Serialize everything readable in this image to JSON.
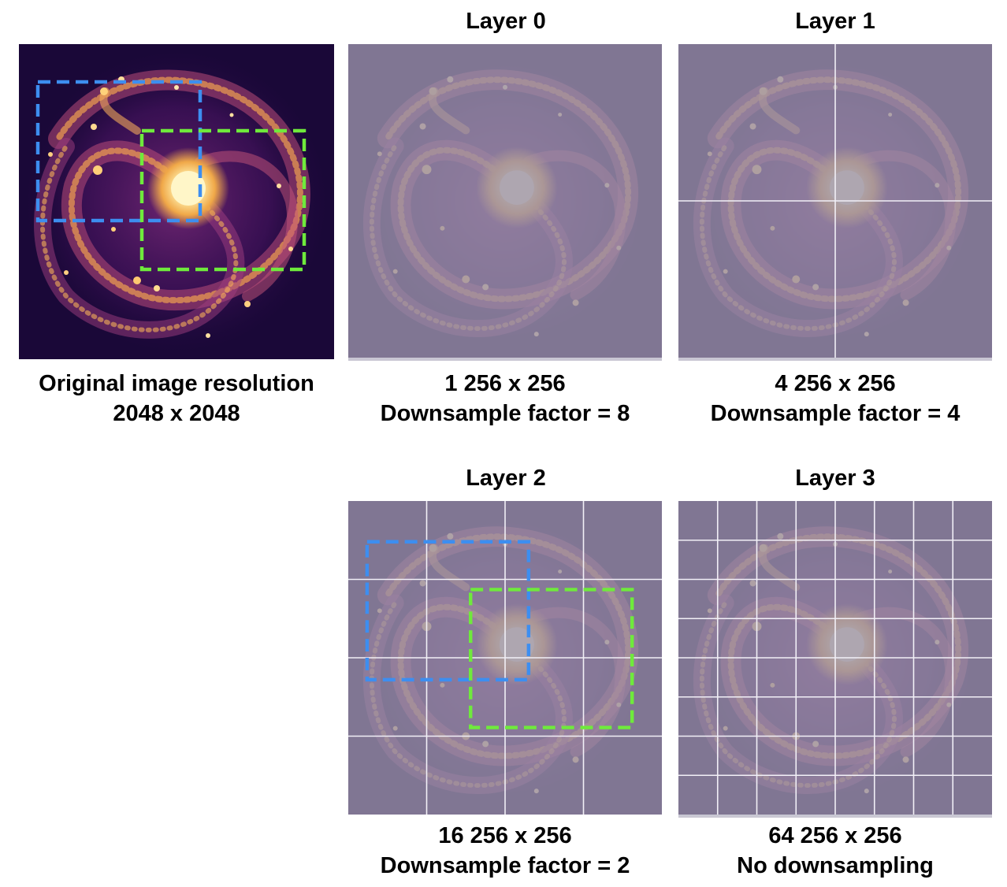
{
  "original": {
    "caption_line1": "Original image resolution",
    "caption_line2": "2048 x 2048"
  },
  "layers": [
    {
      "title": "Layer 0",
      "caption_line1": "1 256 x 256",
      "caption_line2": "Downsample factor = 8",
      "grid": 1
    },
    {
      "title": "Layer 1",
      "caption_line1": "4 256 x 256",
      "caption_line2": "Downsample factor = 4",
      "grid": 2
    },
    {
      "title": "Layer 2",
      "caption_line1": "16 256 x 256",
      "caption_line2": "Downsample factor = 2",
      "grid": 4
    },
    {
      "title": "Layer 3",
      "caption_line1": "64 256 x 256",
      "caption_line2": "No downsampling",
      "grid": 8
    }
  ],
  "colors": {
    "blue_box": "#3d8ef0",
    "green_box": "#6fea3c",
    "grid_line": "#f2f0f7",
    "overlay": "#9a92aa",
    "galaxy_bg": "#1a0838"
  }
}
